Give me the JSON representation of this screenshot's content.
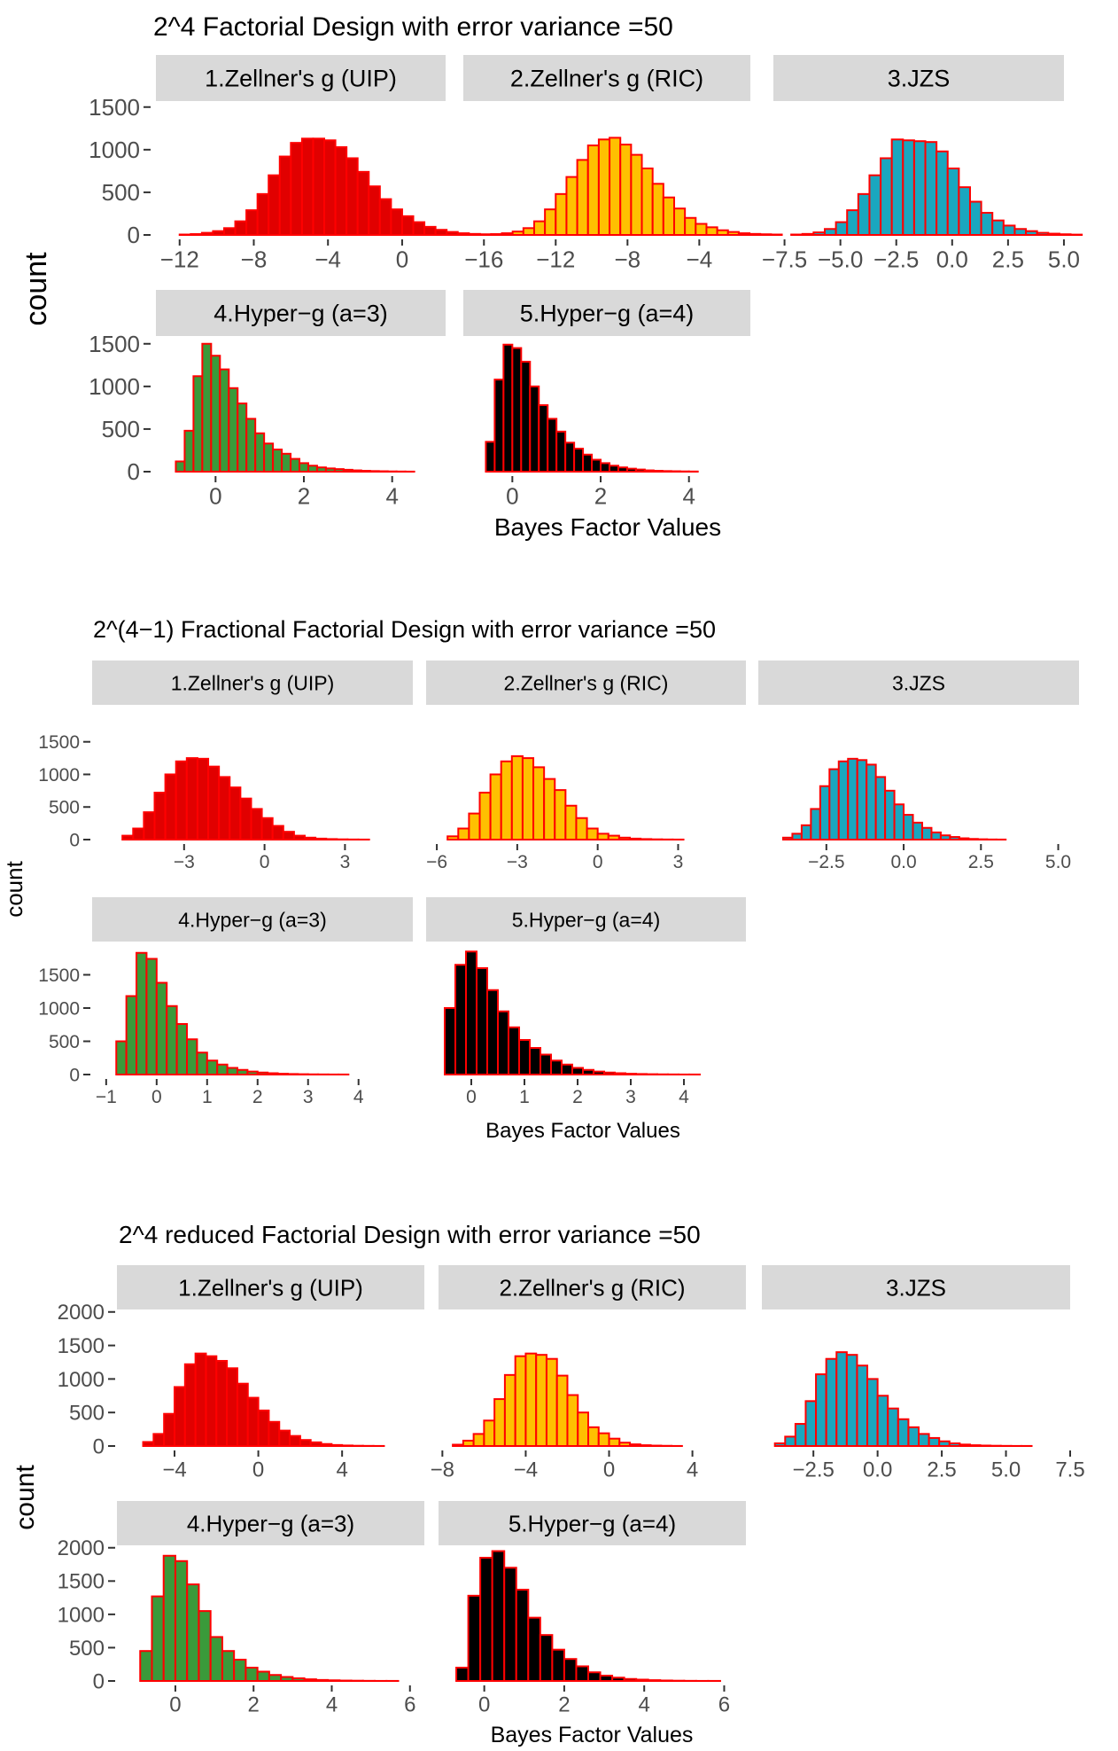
{
  "figure": {
    "xlabel": "Bayes Factor Values",
    "ylabel": "count",
    "colors": {
      "outline": "#ff0000",
      "panel_strip": "#d9d9d9",
      "uip": "#e10000",
      "ric": "#ffc000",
      "jzs": "#1aa7bf",
      "hyper3": "#3a9a3a",
      "hyper4": "#000000"
    }
  },
  "chart_data": [
    {
      "type": "bar",
      "title": "2^4 Factorial Design with error variance =50",
      "xlabel": "Bayes Factor Values",
      "ylabel": "count",
      "panels": [
        {
          "label": "1.Zellner's g (UIP)",
          "fill": "#e10000",
          "xlim": [
            -12.8,
            2.2
          ],
          "xticks": [
            -12,
            -8,
            -4,
            0
          ],
          "xtick_labels": [
            "−12",
            "−8",
            "−4",
            "0"
          ],
          "ylim": [
            0,
            1560
          ],
          "yticks": [
            0,
            500,
            1000,
            1500
          ],
          "ytick_labels": [
            "0",
            "500",
            "1000",
            "1500"
          ],
          "bin_start": -12,
          "bin_width": 0.6,
          "counts": [
            5,
            10,
            25,
            45,
            80,
            160,
            290,
            480,
            700,
            920,
            1080,
            1130,
            1130,
            1110,
            1030,
            900,
            740,
            570,
            420,
            300,
            220,
            150,
            95,
            60,
            35,
            20,
            12,
            8,
            5,
            3
          ]
        },
        {
          "label": "2.Zellner's g (RIC)",
          "fill": "#ffc000",
          "xlim": [
            -17,
            -1.5
          ],
          "xticks": [
            -16,
            -12,
            -8,
            -4
          ],
          "xtick_labels": [
            "−16",
            "−12",
            "−8",
            "−4"
          ],
          "ylim": [
            0,
            1560
          ],
          "yticks": [
            0,
            500,
            1000,
            1500
          ],
          "ytick_labels": [
            "0",
            "500",
            "1000",
            "1500"
          ],
          "bin_start": -16.2,
          "bin_width": 0.6,
          "counts": [
            5,
            10,
            20,
            40,
            80,
            160,
            300,
            480,
            680,
            880,
            1050,
            1120,
            1140,
            1060,
            940,
            780,
            600,
            440,
            310,
            200,
            130,
            90,
            55,
            35,
            20,
            12,
            8,
            5
          ]
        },
        {
          "label": "3.JZS",
          "fill": "#1aa7bf",
          "xlim": [
            -7.8,
            5.2
          ],
          "xticks": [
            -7.5,
            -5.0,
            -2.5,
            0.0,
            2.5,
            5.0
          ],
          "xtick_labels": [
            "−7.5",
            "−5.0",
            "−2.5",
            "0.0",
            "2.5",
            "5.0"
          ],
          "ylim": [
            0,
            1560
          ],
          "yticks": [
            0,
            500,
            1000,
            1500
          ],
          "ytick_labels": [
            "0",
            "500",
            "1000",
            "1500"
          ],
          "bin_start": -7.2,
          "bin_width": 0.5,
          "counts": [
            5,
            12,
            30,
            70,
            150,
            290,
            480,
            700,
            900,
            1120,
            1110,
            1100,
            1090,
            980,
            780,
            560,
            390,
            260,
            170,
            110,
            70,
            45,
            25,
            15,
            8,
            4
          ]
        },
        {
          "label": "4.Hyper−g (a=3)",
          "fill": "#3a9a3a",
          "xlim": [
            -1.15,
            5.15
          ],
          "xticks": [
            0,
            2,
            4
          ],
          "xtick_labels": [
            "0",
            "2",
            "4"
          ],
          "ylim": [
            0,
            1560
          ],
          "yticks": [
            0,
            500,
            1000,
            1500
          ],
          "ytick_labels": [
            "0",
            "500",
            "1000",
            "1500"
          ],
          "bin_start": -0.9,
          "bin_width": 0.2,
          "counts": [
            120,
            480,
            1120,
            1500,
            1360,
            1200,
            980,
            800,
            620,
            450,
            330,
            260,
            210,
            150,
            100,
            70,
            50,
            38,
            30,
            22,
            15,
            10,
            7,
            5,
            3,
            2,
            1
          ]
        },
        {
          "label": "5.Hyper−g (a=4)",
          "fill": "#000000",
          "xlim": [
            -1.05,
            5.25
          ],
          "xticks": [
            0,
            2,
            4
          ],
          "xtick_labels": [
            "0",
            "2",
            "4"
          ],
          "ylim": [
            0,
            1560
          ],
          "yticks": [
            0,
            500,
            1000,
            1500
          ],
          "ytick_labels": [
            "0",
            "500",
            "1000",
            "1500"
          ],
          "bin_start": -0.6,
          "bin_width": 0.2,
          "counts": [
            350,
            1080,
            1490,
            1450,
            1290,
            1000,
            780,
            620,
            470,
            340,
            270,
            200,
            140,
            100,
            70,
            50,
            35,
            25,
            15,
            10,
            7,
            5,
            3,
            2
          ]
        }
      ]
    },
    {
      "type": "bar",
      "title": "2^(4−1) Fractional Factorial Design with error variance =50",
      "xlabel": "Bayes Factor Values",
      "ylabel": "count",
      "panels": [
        {
          "label": "1.Zellner's g (UIP)",
          "fill": "#e10000",
          "xlim": [
            -6,
            5.2
          ],
          "xticks": [
            -3,
            0,
            3
          ],
          "xtick_labels": [
            "−3",
            "0",
            "3"
          ],
          "ylim": [
            0,
            1700
          ],
          "yticks": [
            0,
            500,
            1000,
            1500
          ],
          "ytick_labels": [
            "0",
            "500",
            "1000",
            "1500"
          ],
          "bin_start": -5.3,
          "bin_width": 0.4,
          "counts": [
            60,
            170,
            420,
            720,
            1000,
            1200,
            1250,
            1240,
            1120,
            960,
            800,
            630,
            470,
            330,
            210,
            120,
            60,
            30,
            15,
            8,
            4,
            2,
            1
          ]
        },
        {
          "label": "2.Zellner's g (RIC)",
          "fill": "#ffc000",
          "xlim": [
            -6.3,
            5
          ],
          "xticks": [
            -6,
            -3,
            0,
            3
          ],
          "xtick_labels": [
            "−6",
            "−3",
            "0",
            "3"
          ],
          "ylim": [
            0,
            1700
          ],
          "yticks": [
            0,
            500,
            1000,
            1500
          ],
          "ytick_labels": [
            "0",
            "500",
            "1000",
            "1500"
          ],
          "bin_start": -5.6,
          "bin_width": 0.4,
          "counts": [
            50,
            170,
            400,
            720,
            1000,
            1200,
            1280,
            1250,
            1110,
            930,
            760,
            520,
            330,
            170,
            90,
            60,
            30,
            15,
            8,
            4,
            2,
            1
          ]
        },
        {
          "label": "3.JZS",
          "fill": "#1aa7bf",
          "xlim": [
            -4.3,
            5.3
          ],
          "xticks": [
            -2.5,
            0.0,
            2.5,
            5.0
          ],
          "xtick_labels": [
            "−2.5",
            "0.0",
            "2.5",
            "5.0"
          ],
          "ylim": [
            0,
            1700
          ],
          "yticks": [
            0,
            500,
            1000,
            1500
          ],
          "ytick_labels": [
            "0",
            "500",
            "1000",
            "1500"
          ],
          "bin_start": -3.9,
          "bin_width": 0.3,
          "counts": [
            30,
            90,
            220,
            470,
            820,
            1080,
            1200,
            1240,
            1220,
            1150,
            960,
            750,
            540,
            380,
            260,
            180,
            110,
            65,
            40,
            20,
            10,
            5,
            2,
            1
          ]
        },
        {
          "label": "4.Hyper−g (a=3)",
          "fill": "#3a9a3a",
          "xlim": [
            -1.05,
            4.9
          ],
          "xticks": [
            -1,
            0,
            1,
            2,
            3,
            4
          ],
          "xtick_labels": [
            "−1",
            "0",
            "1",
            "2",
            "3",
            "4"
          ],
          "ylim": [
            0,
            1960
          ],
          "yticks": [
            0,
            500,
            1000,
            1500
          ],
          "ytick_labels": [
            "0",
            "500",
            "1000",
            "1500"
          ],
          "bin_start": -0.8,
          "bin_width": 0.2,
          "counts": [
            500,
            1180,
            1830,
            1740,
            1380,
            1030,
            760,
            530,
            330,
            210,
            150,
            100,
            70,
            45,
            30,
            20,
            12,
            8,
            5,
            3,
            2,
            1,
            1,
            0,
            0,
            0,
            0
          ]
        },
        {
          "label": "5.Hyper−g (a=4)",
          "fill": "#000000",
          "xlim": [
            -0.8,
            4.9
          ],
          "xticks": [
            0,
            1,
            2,
            3,
            4
          ],
          "xtick_labels": [
            "0",
            "1",
            "2",
            "3",
            "4"
          ],
          "ylim": [
            0,
            1960
          ],
          "yticks": [
            0,
            500,
            1000,
            1500
          ],
          "ytick_labels": [
            "0",
            "500",
            "1000",
            "1500"
          ],
          "bin_start": -0.5,
          "bin_width": 0.2,
          "counts": [
            1000,
            1650,
            1850,
            1600,
            1270,
            950,
            710,
            520,
            400,
            300,
            210,
            150,
            100,
            70,
            45,
            30,
            20,
            12,
            8,
            5,
            3,
            2,
            1,
            1
          ]
        }
      ]
    },
    {
      "type": "bar",
      "title": "2^4 reduced Factorial Design with error variance =50",
      "xlabel": "Bayes Factor Values",
      "ylabel": "count",
      "panels": [
        {
          "label": "1.Zellner's g (UIP)",
          "fill": "#e10000",
          "xlim": [
            -6.2,
            7.8
          ],
          "xticks": [
            -4,
            0,
            4
          ],
          "xtick_labels": [
            "−4",
            "0",
            "4"
          ],
          "ylim": [
            0,
            2050
          ],
          "yticks": [
            0,
            500,
            1000,
            1500,
            2000
          ],
          "ytick_labels": [
            "0",
            "500",
            "1000",
            "1500",
            "2000"
          ],
          "bin_start": -5.5,
          "bin_width": 0.5,
          "counts": [
            60,
            180,
            480,
            880,
            1220,
            1380,
            1340,
            1270,
            1160,
            930,
            720,
            530,
            360,
            230,
            150,
            90,
            55,
            30,
            15,
            8,
            4,
            2,
            1
          ]
        },
        {
          "label": "2.Zellner's g (RIC)",
          "fill": "#ffc000",
          "xlim": [
            -8.1,
            6.1
          ],
          "xticks": [
            -8,
            -4,
            0,
            4
          ],
          "xtick_labels": [
            "−8",
            "−4",
            "0",
            "4"
          ],
          "ylim": [
            0,
            2050
          ],
          "yticks": [
            0,
            500,
            1000,
            1500,
            2000
          ],
          "ytick_labels": [
            "0",
            "500",
            "1000",
            "1500",
            "2000"
          ],
          "bin_start": -7.5,
          "bin_width": 0.5,
          "counts": [
            20,
            80,
            180,
            380,
            700,
            1060,
            1340,
            1380,
            1360,
            1300,
            1050,
            760,
            500,
            280,
            190,
            110,
            50,
            25,
            12,
            6,
            3,
            1
          ]
        },
        {
          "label": "3.JZS",
          "fill": "#1aa7bf",
          "xlim": [
            -4.3,
            7.5
          ],
          "xticks": [
            -2.5,
            0.0,
            2.5,
            5.0,
            7.5
          ],
          "xtick_labels": [
            "−2.5",
            "0.0",
            "2.5",
            "5.0",
            "7.5"
          ],
          "ylim": [
            0,
            2050
          ],
          "yticks": [
            0,
            500,
            1000,
            1500,
            2000
          ],
          "ytick_labels": [
            "0",
            "500",
            "1000",
            "1500",
            "2000"
          ],
          "bin_start": -4.0,
          "bin_width": 0.4,
          "counts": [
            40,
            140,
            330,
            670,
            1070,
            1300,
            1400,
            1360,
            1200,
            1000,
            750,
            560,
            400,
            280,
            180,
            120,
            70,
            40,
            22,
            12,
            7,
            4,
            2,
            1,
            1,
            0,
            0,
            0,
            0,
            0
          ]
        },
        {
          "label": "4.Hyper−g (a=3)",
          "fill": "#3a9a3a",
          "xlim": [
            -1.2,
            6.3
          ],
          "xticks": [
            0,
            2,
            4,
            6
          ],
          "xtick_labels": [
            "0",
            "2",
            "4",
            "6"
          ],
          "ylim": [
            0,
            2050
          ],
          "yticks": [
            0,
            500,
            1000,
            1500,
            2000
          ],
          "ytick_labels": [
            "0",
            "500",
            "1000",
            "1500",
            "2000"
          ],
          "bin_start": -0.9,
          "bin_width": 0.3,
          "counts": [
            450,
            1270,
            1880,
            1800,
            1450,
            1050,
            660,
            450,
            320,
            200,
            140,
            90,
            60,
            40,
            25,
            15,
            10,
            6,
            4,
            2,
            1,
            1,
            0,
            0,
            0,
            0,
            0
          ]
        },
        {
          "label": "5.Hyper−g (a=4)",
          "fill": "#000000",
          "xlim": [
            -1.1,
            6.3
          ],
          "xticks": [
            0,
            2,
            4,
            6
          ],
          "xtick_labels": [
            "0",
            "2",
            "4",
            "6"
          ],
          "ylim": [
            0,
            2050
          ],
          "yticks": [
            0,
            500,
            1000,
            1500,
            2000
          ],
          "ytick_labels": [
            "0",
            "500",
            "1000",
            "1500",
            "2000"
          ],
          "bin_start": -0.7,
          "bin_width": 0.3,
          "counts": [
            200,
            1280,
            1850,
            1950,
            1700,
            1370,
            950,
            690,
            470,
            330,
            220,
            130,
            80,
            50,
            30,
            20,
            12,
            7,
            4,
            2,
            1,
            1,
            0,
            0,
            0
          ]
        }
      ]
    }
  ]
}
